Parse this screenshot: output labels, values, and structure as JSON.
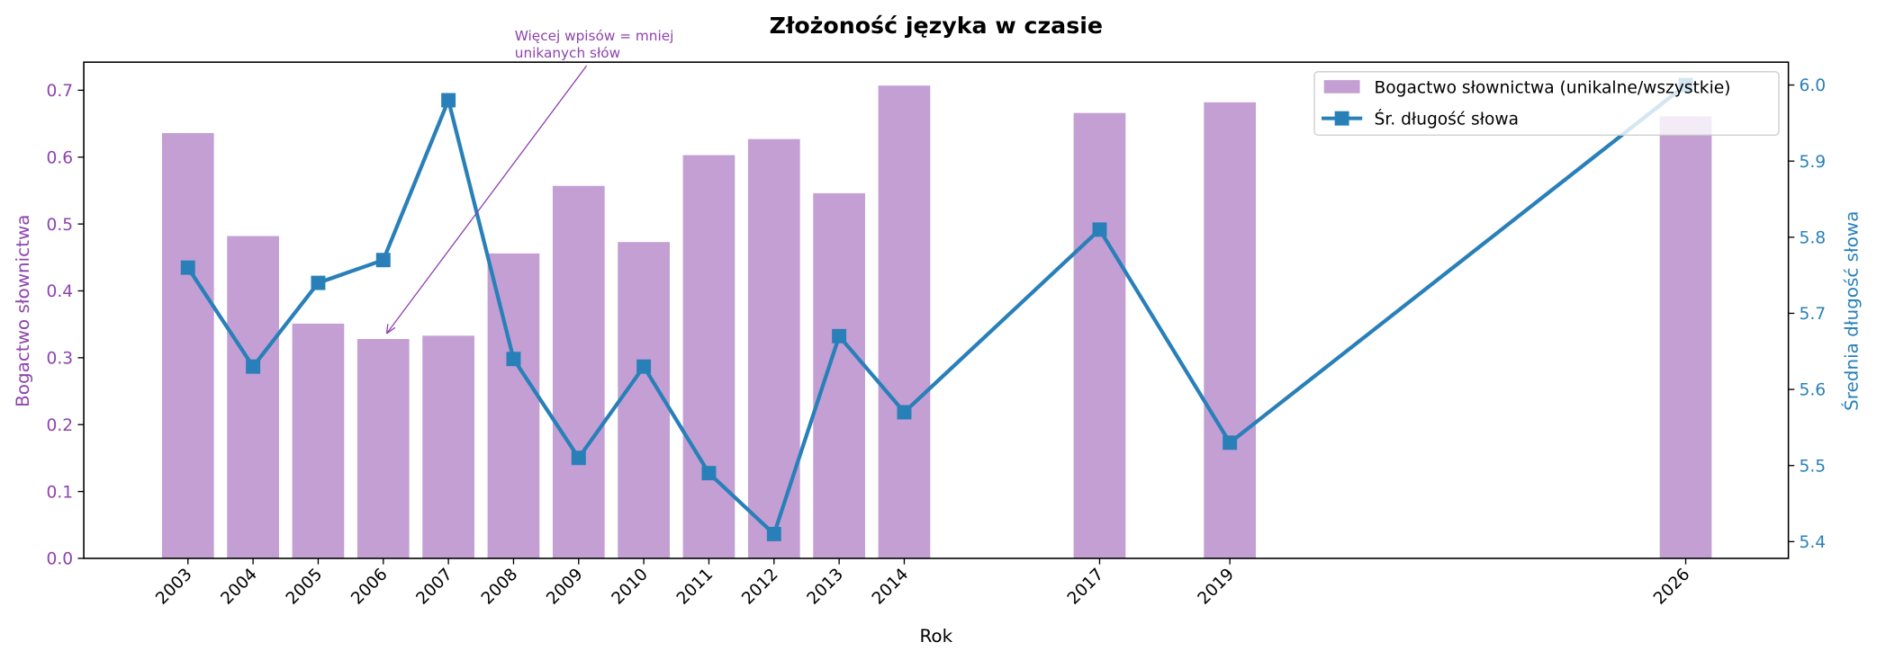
{
  "chart_data": {
    "type": "bar",
    "title": "Złożoność języka w czasie",
    "xlabel": "Rok",
    "ylabel": "Bogactwo słownictwa",
    "ylabel_right": "Średnia długość słowa",
    "categories": [
      "2003",
      "2004",
      "2005",
      "2006",
      "2007",
      "2008",
      "2009",
      "2010",
      "2011",
      "2012",
      "2013",
      "2014",
      "2017",
      "2019",
      "2026"
    ],
    "series": [
      {
        "name": "Bogactwo słownictwa (unikalne/wszystkie)",
        "type": "bar",
        "axis": "left",
        "color": "#c39fd4",
        "values": [
          0.636,
          0.482,
          0.351,
          0.328,
          0.333,
          0.456,
          0.557,
          0.473,
          0.603,
          0.627,
          0.546,
          0.707,
          0.666,
          0.682,
          0.661
        ]
      },
      {
        "name": "Śr. długość słowa",
        "type": "line",
        "axis": "right",
        "color": "#2980b9",
        "marker": "square",
        "values": [
          5.76,
          5.63,
          5.74,
          5.77,
          5.98,
          5.64,
          5.51,
          5.63,
          5.49,
          5.41,
          5.67,
          5.57,
          5.81,
          5.53,
          6.0
        ]
      }
    ],
    "ylim": [
      0,
      0.742
    ],
    "ylim_right": [
      5.378,
      6.03
    ],
    "yticks": [
      "0.0",
      "0.1",
      "0.2",
      "0.3",
      "0.4",
      "0.5",
      "0.6",
      "0.7"
    ],
    "yticks_right": [
      "5.4",
      "5.5",
      "5.6",
      "5.7",
      "5.8",
      "5.9",
      "6.0"
    ],
    "legend_position": "top-right",
    "annotation": {
      "lines": [
        "Więcej wpisów = mniej",
        "unikanych słów"
      ],
      "target_year": "2006",
      "color": "#8e44ad"
    },
    "left_axis_color": "#8e44ad",
    "right_axis_color": "#2980b9"
  }
}
